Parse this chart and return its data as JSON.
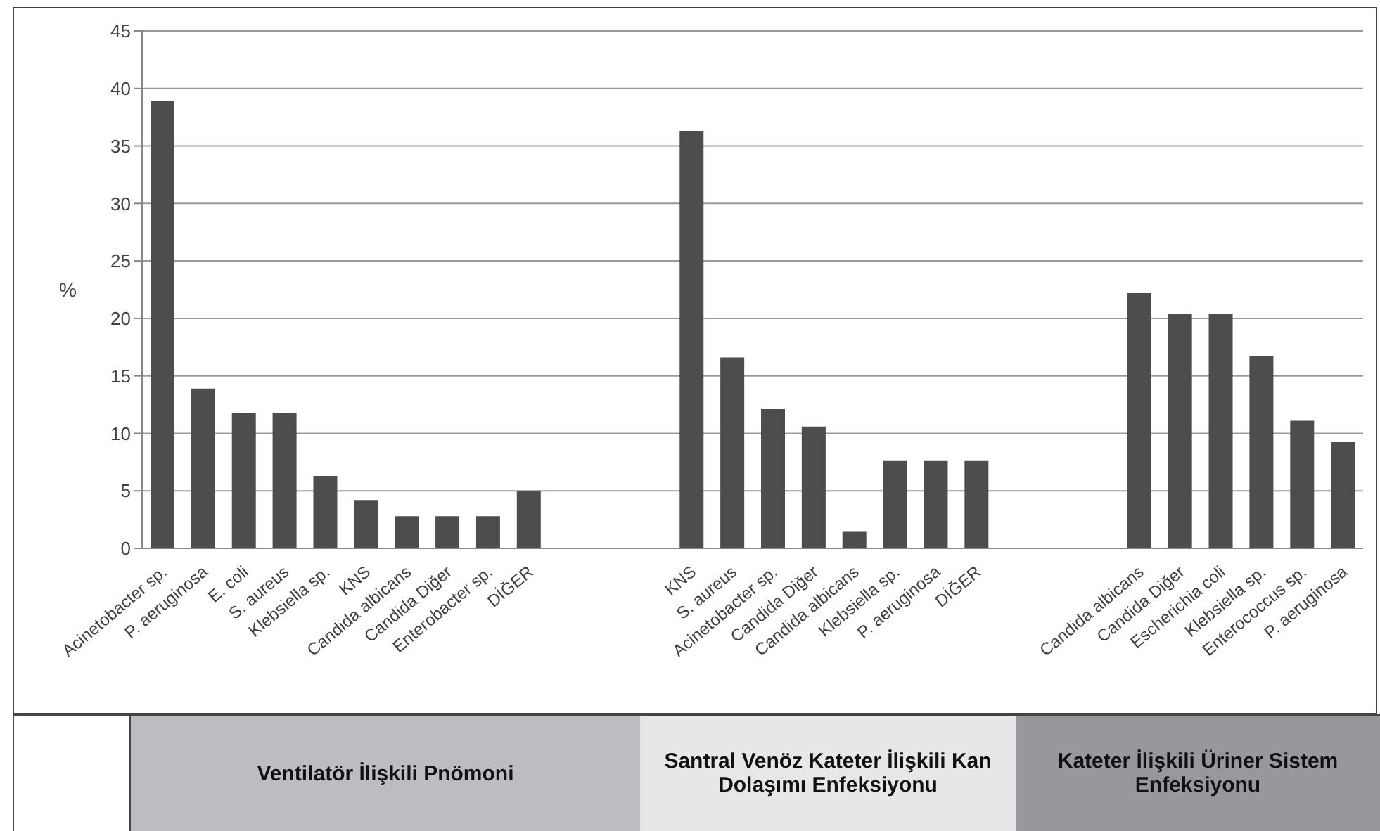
{
  "chart_data": {
    "type": "bar",
    "ylabel": "%",
    "categories": [
      "Acinetobacter sp.",
      "P. aeruginosa",
      "E. coli",
      "S. aureus",
      "Klebsiella sp.",
      "KNS",
      "Candida albicans",
      "Candida Diğer",
      "Enterobacter sp.",
      "DİĞER",
      null,
      null,
      null,
      "KNS",
      "S. aureus",
      "Acinetobacter sp.",
      "Candida Diğer",
      "Candida albicans",
      "Klebsiella sp.",
      "P. aeruginosa",
      "DİĞER",
      null,
      null,
      null,
      "Candida albicans",
      "Candida Diğer",
      "Escherichia coli",
      "Klebsiella sp.",
      "Enterococcus sp.",
      "P. aeruginosa"
    ],
    "values": [
      38.9,
      13.9,
      11.8,
      11.8,
      6.3,
      4.2,
      2.8,
      2.8,
      2.8,
      5.0,
      null,
      null,
      null,
      36.3,
      16.6,
      12.1,
      10.6,
      1.5,
      7.6,
      7.6,
      7.6,
      null,
      null,
      null,
      22.2,
      20.4,
      20.4,
      16.7,
      11.1,
      9.3
    ],
    "color": "#4d4d4d",
    "ylim": [
      0,
      45
    ],
    "yticks": [
      0,
      5,
      10,
      15,
      20,
      25,
      30,
      35,
      40,
      45
    ],
    "grid": "y",
    "annotations": [
      "Ventilatör İlişkili Pnömoni",
      "Santral Venöz Kateter İlişkili Kan Dolaşımı Enfeksiyonu",
      "Kateter İlişkili Üriner Sistem Enfeksiyonu"
    ]
  }
}
